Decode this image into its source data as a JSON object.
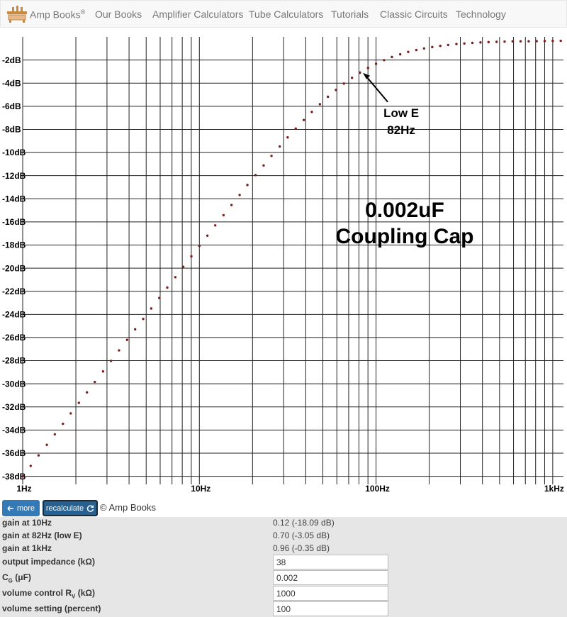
{
  "nav": {
    "brand": "Amp Books",
    "brand_mark": "®",
    "links": [
      "Our Books",
      "Amplifier Calculators",
      "Tube Calculators",
      "Tutorials",
      "Classic Circuits",
      "Technology"
    ]
  },
  "chart_data": {
    "type": "scatter",
    "log_x": true,
    "grid": true,
    "color": "#7a1f1f",
    "xlim": [
      1,
      1150
    ],
    "ylim": [
      -38.7,
      0
    ],
    "xticks": [
      {
        "value": 1,
        "label": "1Hz"
      },
      {
        "value": 10,
        "label": "10Hz"
      },
      {
        "value": 100,
        "label": "100Hz"
      },
      {
        "value": 1000,
        "label": "1kHz"
      }
    ],
    "xgrid": [
      2,
      3,
      4,
      5,
      6,
      7,
      8,
      9,
      20,
      30,
      40,
      50,
      60,
      70,
      80,
      90,
      200,
      300,
      400,
      500,
      600,
      700,
      800,
      900
    ],
    "yticks": [
      {
        "value": -2,
        "label": "-2dB"
      },
      {
        "value": -4,
        "label": "-4dB"
      },
      {
        "value": -6,
        "label": "-6dB"
      },
      {
        "value": -8,
        "label": "-8dB"
      },
      {
        "value": -10,
        "label": "-10dB"
      },
      {
        "value": -12,
        "label": "-12dB"
      },
      {
        "value": -14,
        "label": "-14dB"
      },
      {
        "value": -16,
        "label": "-16dB"
      },
      {
        "value": -18,
        "label": "-18dB"
      },
      {
        "value": -20,
        "label": "-20dB"
      },
      {
        "value": -22,
        "label": "-22dB"
      },
      {
        "value": -24,
        "label": "-24dB"
      },
      {
        "value": -26,
        "label": "-26dB"
      },
      {
        "value": -28,
        "label": "-28dB"
      },
      {
        "value": -30,
        "label": "-30dB"
      },
      {
        "value": -32,
        "label": "-32dB"
      },
      {
        "value": -34,
        "label": "-34dB"
      },
      {
        "value": -36,
        "label": "-36dB"
      },
      {
        "value": -38,
        "label": "-38dB"
      }
    ],
    "x": [
      1.0,
      1.11,
      1.23,
      1.37,
      1.52,
      1.69,
      1.87,
      2.08,
      2.31,
      2.56,
      2.85,
      3.16,
      3.51,
      3.9,
      4.33,
      4.81,
      5.34,
      5.93,
      6.58,
      7.31,
      8.11,
      9.01,
      10.0,
      11.1,
      12.3,
      13.7,
      15.2,
      16.9,
      18.7,
      20.8,
      23.1,
      25.6,
      28.5,
      31.6,
      35.1,
      39.0,
      43.3,
      48.1,
      53.4,
      59.3,
      65.8,
      73.1,
      81.1,
      90.1,
      100,
      111,
      123,
      137,
      152,
      169,
      187,
      208,
      231,
      256,
      285,
      316,
      351,
      390,
      433,
      481,
      534,
      593,
      658,
      731,
      811,
      901,
      1000,
      1110
    ],
    "values": [
      -38.01,
      -37.1,
      -36.19,
      -35.28,
      -34.37,
      -33.46,
      -32.56,
      -31.65,
      -30.74,
      -29.84,
      -28.93,
      -28.02,
      -27.11,
      -26.2,
      -25.29,
      -24.39,
      -23.49,
      -22.58,
      -21.68,
      -20.78,
      -19.88,
      -18.98,
      -18.08,
      -17.19,
      -16.3,
      -15.42,
      -14.54,
      -13.67,
      -12.81,
      -11.95,
      -11.12,
      -10.29,
      -9.48,
      -8.69,
      -7.93,
      -7.19,
      -6.49,
      -5.82,
      -5.18,
      -4.59,
      -4.04,
      -3.54,
      -3.09,
      -2.69,
      -2.33,
      -2.01,
      -1.74,
      -1.51,
      -1.3,
      -1.14,
      -1.0,
      -0.88,
      -0.78,
      -0.7,
      -0.62,
      -0.57,
      -0.52,
      -0.48,
      -0.45,
      -0.43,
      -0.41,
      -0.39,
      -0.38,
      -0.38,
      -0.37,
      -0.36,
      -0.35,
      -0.34
    ],
    "annotation": {
      "lines": [
        "Low E",
        "82Hz"
      ],
      "x": 82,
      "y": -3.05
    },
    "caption": [
      "0.002uF",
      "Coupling Cap"
    ]
  },
  "buttons": [
    "more",
    "recalculate"
  ],
  "copyright": "© Amp Books",
  "results": [
    {
      "label": "gain at 10Hz",
      "value": "0.12 (-18.09 dB)"
    },
    {
      "label": "gain at 82Hz (low E)",
      "value": "0.70 (-3.05 dB)"
    },
    {
      "label": "gain at 1kHz",
      "value": "0.96 (-0.35 dB)"
    }
  ],
  "inputs": [
    {
      "label": "output impedance (kΩ)",
      "value": "38"
    },
    {
      "label": "C",
      "sub": "G",
      "rest": " (μF)",
      "value": "0.002"
    },
    {
      "label": "volume control R",
      "sub": "V",
      "rest": " (kΩ)",
      "value": "1000"
    },
    {
      "label": "volume setting (percent)",
      "value": "100"
    }
  ]
}
